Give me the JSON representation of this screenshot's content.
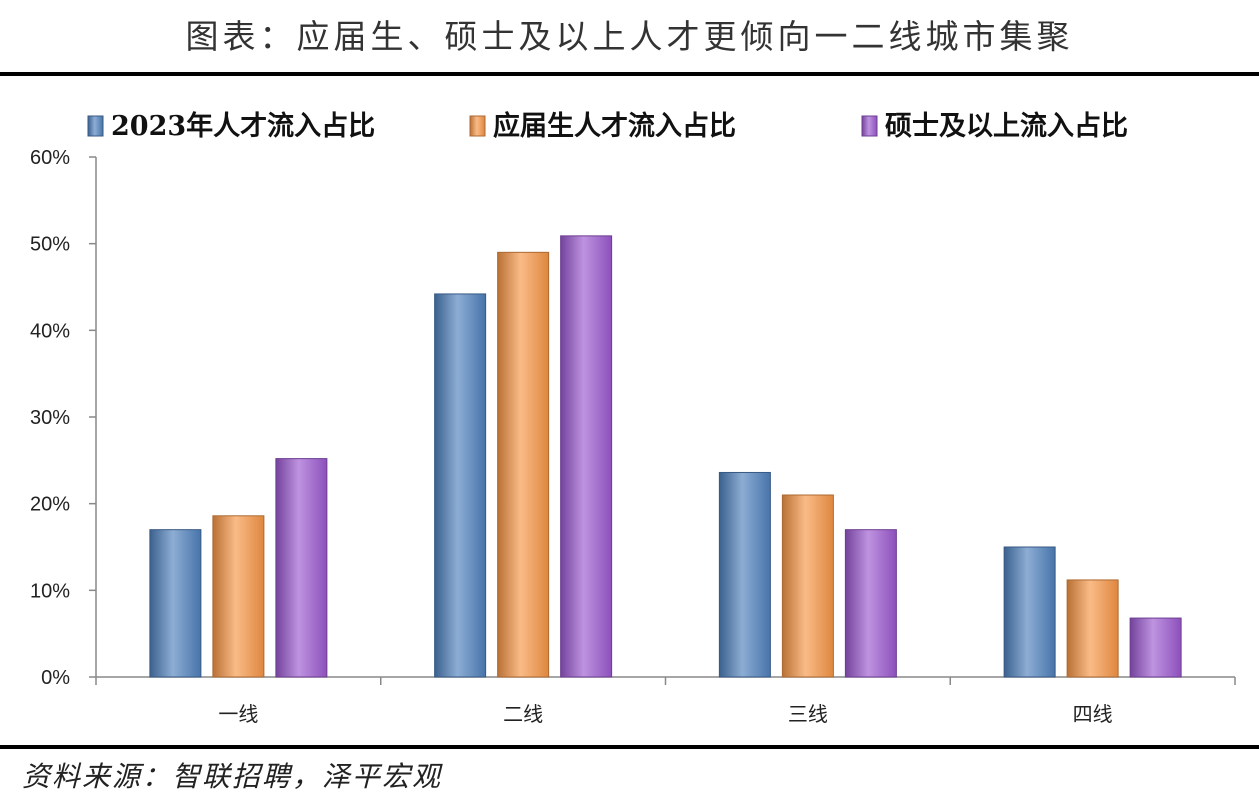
{
  "header": {
    "title": "图表：应届生、硕士及以上人才更倾向一二线城市集聚"
  },
  "footer": {
    "source": "资料来源：智联招聘，泽平宏观"
  },
  "chart_data": {
    "type": "bar",
    "categories": [
      "一线",
      "二线",
      "三线",
      "四线"
    ],
    "series": [
      {
        "name": "2023年人才流入占比",
        "values": [
          17,
          44.2,
          23.6,
          15
        ],
        "color": "#4f81bd"
      },
      {
        "name": "应届生人才流入占比",
        "values": [
          18.6,
          49,
          21,
          11.2
        ],
        "color": "#f79646"
      },
      {
        "name": "硕士及以上流入占比",
        "values": [
          25.2,
          50.9,
          17,
          6.8
        ],
        "color": "#9b59d0"
      }
    ],
    "yticks": [
      "0%",
      "10%",
      "20%",
      "30%",
      "40%",
      "50%",
      "60%"
    ],
    "ylim": [
      0,
      60
    ],
    "legend_position": "top",
    "grid": false
  }
}
